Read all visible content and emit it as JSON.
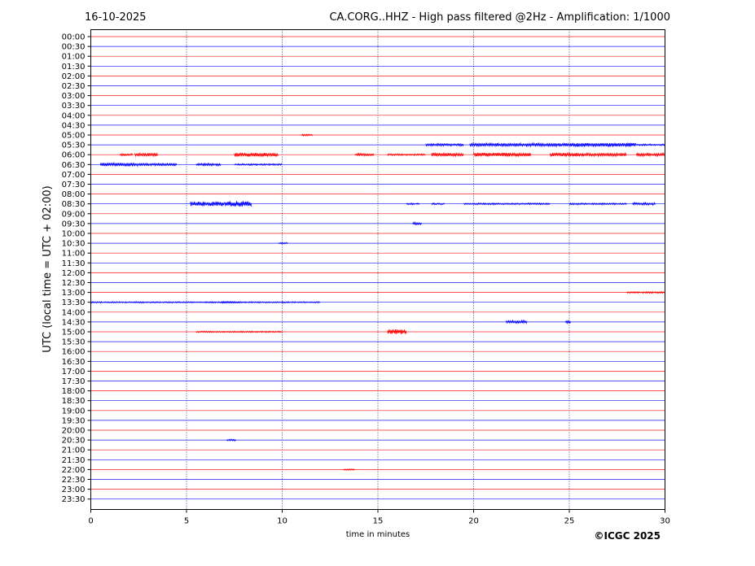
{
  "header": {
    "date": "16-10-2025",
    "title": "CA.CORG..HHZ - High pass filtered @2Hz - Amplification: 1/1000"
  },
  "footer": {
    "credit": "©ICGC 2025"
  },
  "chart_data": {
    "type": "line",
    "title": "CA.CORG..HHZ - High pass filtered @2Hz - Amplification: 1/1000",
    "xlabel": "time in minutes",
    "ylabel": "UTC (local time = UTC + 02:00)",
    "xlim": [
      0,
      30
    ],
    "x_ticks": [
      "0",
      "5",
      "10",
      "15",
      "20",
      "25",
      "30"
    ],
    "grid": "vertical dotted at 5-minute intervals",
    "trace_colors": [
      "#ff0000",
      "#0000ff"
    ],
    "rows": [
      {
        "label": "00:00",
        "events": []
      },
      {
        "label": "00:30",
        "events": []
      },
      {
        "label": "01:00",
        "events": []
      },
      {
        "label": "01:30",
        "events": []
      },
      {
        "label": "02:00",
        "events": []
      },
      {
        "label": "02:30",
        "events": []
      },
      {
        "label": "03:00",
        "events": []
      },
      {
        "label": "03:30",
        "events": []
      },
      {
        "label": "04:00",
        "events": []
      },
      {
        "label": "04:30",
        "events": []
      },
      {
        "label": "05:00",
        "events": [
          {
            "start": 11.0,
            "end": 11.6,
            "amp": 1
          }
        ]
      },
      {
        "label": "05:30",
        "events": [
          {
            "start": 17.5,
            "end": 19.5,
            "amp": 1.5
          },
          {
            "start": 19.8,
            "end": 25.0,
            "amp": 2
          },
          {
            "start": 25.0,
            "end": 28.5,
            "amp": 2.5
          },
          {
            "start": 28.5,
            "end": 30,
            "amp": 1
          }
        ]
      },
      {
        "label": "06:00",
        "events": [
          {
            "start": 1.5,
            "end": 2.2,
            "amp": 1.5
          },
          {
            "start": 2.3,
            "end": 3.5,
            "amp": 2
          },
          {
            "start": 7.5,
            "end": 9.8,
            "amp": 2.5
          },
          {
            "start": 13.8,
            "end": 14.8,
            "amp": 1.5
          },
          {
            "start": 15.5,
            "end": 17.5,
            "amp": 1
          },
          {
            "start": 17.8,
            "end": 19.5,
            "amp": 2
          },
          {
            "start": 20.0,
            "end": 23.0,
            "amp": 2.5
          },
          {
            "start": 24.0,
            "end": 26.0,
            "amp": 2.5
          },
          {
            "start": 26.0,
            "end": 28.0,
            "amp": 2
          },
          {
            "start": 28.5,
            "end": 30,
            "amp": 2
          }
        ]
      },
      {
        "label": "06:30",
        "events": [
          {
            "start": 0.5,
            "end": 2.5,
            "amp": 2
          },
          {
            "start": 2.5,
            "end": 4.5,
            "amp": 1.5
          },
          {
            "start": 5.5,
            "end": 6.8,
            "amp": 1.5
          },
          {
            "start": 7.5,
            "end": 9.0,
            "amp": 1
          },
          {
            "start": 9.0,
            "end": 10.0,
            "amp": 1
          }
        ]
      },
      {
        "label": "07:00",
        "events": []
      },
      {
        "label": "07:30",
        "events": []
      },
      {
        "label": "08:00",
        "events": []
      },
      {
        "label": "08:30",
        "events": [
          {
            "start": 5.2,
            "end": 7.0,
            "amp": 3
          },
          {
            "start": 7.0,
            "end": 8.4,
            "amp": 3.5
          },
          {
            "start": 16.5,
            "end": 17.2,
            "amp": 1
          },
          {
            "start": 17.8,
            "end": 18.5,
            "amp": 1
          },
          {
            "start": 19.5,
            "end": 22.5,
            "amp": 1
          },
          {
            "start": 22.5,
            "end": 24.0,
            "amp": 1
          },
          {
            "start": 25.0,
            "end": 28.0,
            "amp": 1
          },
          {
            "start": 28.3,
            "end": 29.5,
            "amp": 1.5
          }
        ]
      },
      {
        "label": "09:00",
        "events": []
      },
      {
        "label": "09:30",
        "events": [
          {
            "start": 16.8,
            "end": 17.3,
            "amp": 1.5
          }
        ]
      },
      {
        "label": "10:00",
        "events": []
      },
      {
        "label": "10:30",
        "events": [
          {
            "start": 9.8,
            "end": 10.3,
            "amp": 1
          }
        ]
      },
      {
        "label": "11:00",
        "events": []
      },
      {
        "label": "11:30",
        "events": []
      },
      {
        "label": "12:00",
        "events": []
      },
      {
        "label": "12:30",
        "events": []
      },
      {
        "label": "13:00",
        "events": [
          {
            "start": 28.0,
            "end": 30,
            "amp": 1
          }
        ]
      },
      {
        "label": "13:30",
        "events": [
          {
            "start": 0.0,
            "end": 12.0,
            "amp": 0.8
          },
          {
            "start": 6.8,
            "end": 7.8,
            "amp": 1
          }
        ]
      },
      {
        "label": "14:00",
        "events": []
      },
      {
        "label": "14:30",
        "events": [
          {
            "start": 21.7,
            "end": 22.8,
            "amp": 2
          },
          {
            "start": 24.8,
            "end": 25.1,
            "amp": 1.5
          }
        ]
      },
      {
        "label": "15:00",
        "events": [
          {
            "start": 5.5,
            "end": 10.0,
            "amp": 0.8
          },
          {
            "start": 15.5,
            "end": 16.5,
            "amp": 3
          }
        ]
      },
      {
        "label": "15:30",
        "events": []
      },
      {
        "label": "16:00",
        "events": []
      },
      {
        "label": "16:30",
        "events": []
      },
      {
        "label": "17:00",
        "events": []
      },
      {
        "label": "17:30",
        "events": []
      },
      {
        "label": "18:00",
        "events": []
      },
      {
        "label": "18:30",
        "events": []
      },
      {
        "label": "19:00",
        "events": []
      },
      {
        "label": "19:30",
        "events": []
      },
      {
        "label": "20:00",
        "events": []
      },
      {
        "label": "20:30",
        "events": [
          {
            "start": 7.1,
            "end": 7.6,
            "amp": 1
          }
        ]
      },
      {
        "label": "21:00",
        "events": []
      },
      {
        "label": "21:30",
        "events": []
      },
      {
        "label": "22:00",
        "events": [
          {
            "start": 13.2,
            "end": 13.8,
            "amp": 0.8
          }
        ]
      },
      {
        "label": "22:30",
        "events": []
      },
      {
        "label": "23:00",
        "events": []
      },
      {
        "label": "23:30",
        "events": []
      }
    ]
  }
}
